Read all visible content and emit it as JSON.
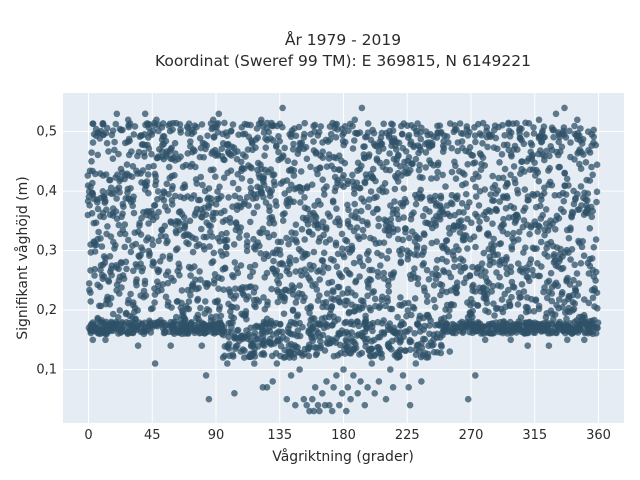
{
  "chart_data": {
    "type": "scatter",
    "title": [
      "År 1979 - 2019",
      "Koordinat (Sweref 99 TM): E 369815, N 6149221"
    ],
    "xlabel": "Vågriktning (grader)",
    "ylabel": "Signifikant våghöjd (m)",
    "xlim": [
      -18,
      378
    ],
    "ylim": [
      0.01,
      0.565
    ],
    "x_ticks": [
      0,
      45,
      90,
      135,
      180,
      225,
      270,
      315,
      360
    ],
    "x_tick_labels": [
      "0",
      "45",
      "90",
      "135",
      "180",
      "225",
      "270",
      "315",
      "360"
    ],
    "y_ticks": [
      0.1,
      0.2,
      0.3,
      0.4,
      0.5
    ],
    "y_tick_labels": [
      "0,1",
      "0,2",
      "0,3",
      "0,4",
      "0,5"
    ],
    "grid": true,
    "legend": "none",
    "marker_color": "#2f5268",
    "background_color": "#e5ecf3",
    "main_band": {
      "x_range": [
        0,
        360
      ],
      "y_range": [
        0.18,
        0.49
      ]
    },
    "outliers": [
      {
        "x": 3,
        "y": 0.15
      },
      {
        "x": 12,
        "y": 0.15
      },
      {
        "x": 20,
        "y": 0.53
      },
      {
        "x": 28,
        "y": 0.52
      },
      {
        "x": 35,
        "y": 0.14
      },
      {
        "x": 40,
        "y": 0.53
      },
      {
        "x": 48,
        "y": 0.52
      },
      {
        "x": 47,
        "y": 0.11
      },
      {
        "x": 58,
        "y": 0.14
      },
      {
        "x": 66,
        "y": 0.16
      },
      {
        "x": 75,
        "y": 0.51
      },
      {
        "x": 80,
        "y": 0.14
      },
      {
        "x": 83,
        "y": 0.09
      },
      {
        "x": 85,
        "y": 0.05
      },
      {
        "x": 88,
        "y": 0.52
      },
      {
        "x": 92,
        "y": 0.53
      },
      {
        "x": 95,
        "y": 0.12
      },
      {
        "x": 98,
        "y": 0.11
      },
      {
        "x": 103,
        "y": 0.06
      },
      {
        "x": 110,
        "y": 0.12
      },
      {
        "x": 117,
        "y": 0.11
      },
      {
        "x": 122,
        "y": 0.52
      },
      {
        "x": 123,
        "y": 0.07
      },
      {
        "x": 126,
        "y": 0.07
      },
      {
        "x": 130,
        "y": 0.08
      },
      {
        "x": 133,
        "y": 0.11
      },
      {
        "x": 137,
        "y": 0.54
      },
      {
        "x": 138,
        "y": 0.12
      },
      {
        "x": 140,
        "y": 0.05
      },
      {
        "x": 143,
        "y": 0.09
      },
      {
        "x": 146,
        "y": 0.04
      },
      {
        "x": 149,
        "y": 0.1
      },
      {
        "x": 152,
        "y": 0.05
      },
      {
        "x": 154,
        "y": 0.04
      },
      {
        "x": 156,
        "y": 0.03
      },
      {
        "x": 158,
        "y": 0.05
      },
      {
        "x": 159,
        "y": 0.03
      },
      {
        "x": 160,
        "y": 0.07
      },
      {
        "x": 162,
        "y": 0.04
      },
      {
        "x": 163,
        "y": 0.03
      },
      {
        "x": 165,
        "y": 0.06
      },
      {
        "x": 167,
        "y": 0.04
      },
      {
        "x": 168,
        "y": 0.08
      },
      {
        "x": 170,
        "y": 0.04
      },
      {
        "x": 172,
        "y": 0.03
      },
      {
        "x": 173,
        "y": 0.07
      },
      {
        "x": 175,
        "y": 0.09
      },
      {
        "x": 177,
        "y": 0.04
      },
      {
        "x": 179,
        "y": 0.06
      },
      {
        "x": 180,
        "y": 0.1
      },
      {
        "x": 182,
        "y": 0.03
      },
      {
        "x": 183,
        "y": 0.07
      },
      {
        "x": 185,
        "y": 0.05
      },
      {
        "x": 187,
        "y": 0.09
      },
      {
        "x": 188,
        "y": 0.52
      },
      {
        "x": 190,
        "y": 0.06
      },
      {
        "x": 192,
        "y": 0.08
      },
      {
        "x": 193,
        "y": 0.54
      },
      {
        "x": 195,
        "y": 0.04
      },
      {
        "x": 197,
        "y": 0.07
      },
      {
        "x": 200,
        "y": 0.11
      },
      {
        "x": 202,
        "y": 0.06
      },
      {
        "x": 205,
        "y": 0.08
      },
      {
        "x": 207,
        "y": 0.12
      },
      {
        "x": 210,
        "y": 0.05
      },
      {
        "x": 213,
        "y": 0.1
      },
      {
        "x": 215,
        "y": 0.07
      },
      {
        "x": 218,
        "y": 0.12
      },
      {
        "x": 222,
        "y": 0.09
      },
      {
        "x": 225,
        "y": 0.51
      },
      {
        "x": 227,
        "y": 0.04
      },
      {
        "x": 226,
        "y": 0.07
      },
      {
        "x": 231,
        "y": 0.11
      },
      {
        "x": 235,
        "y": 0.08
      },
      {
        "x": 240,
        "y": 0.14
      },
      {
        "x": 248,
        "y": 0.51
      },
      {
        "x": 255,
        "y": 0.13
      },
      {
        "x": 268,
        "y": 0.05
      },
      {
        "x": 273,
        "y": 0.09
      },
      {
        "x": 280,
        "y": 0.15
      },
      {
        "x": 287,
        "y": 0.51
      },
      {
        "x": 298,
        "y": 0.15
      },
      {
        "x": 310,
        "y": 0.14
      },
      {
        "x": 318,
        "y": 0.52
      },
      {
        "x": 325,
        "y": 0.14
      },
      {
        "x": 330,
        "y": 0.53
      },
      {
        "x": 336,
        "y": 0.54
      },
      {
        "x": 338,
        "y": 0.15
      },
      {
        "x": 345,
        "y": 0.52
      },
      {
        "x": 350,
        "y": 0.15
      },
      {
        "x": 356,
        "y": 0.16
      }
    ]
  }
}
